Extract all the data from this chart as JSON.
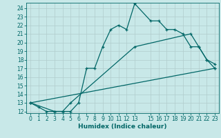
{
  "xlabel": "Humidex (Indice chaleur)",
  "bg_color": "#c8e8e8",
  "grid_color": "#b0cccc",
  "line_color": "#006666",
  "xlim": [
    -0.5,
    23.5
  ],
  "ylim": [
    11.8,
    24.6
  ],
  "yticks": [
    12,
    13,
    14,
    15,
    16,
    17,
    18,
    19,
    20,
    21,
    22,
    23,
    24
  ],
  "xticks": [
    0,
    1,
    2,
    3,
    4,
    5,
    6,
    7,
    8,
    9,
    10,
    11,
    12,
    13,
    15,
    16,
    17,
    18,
    19,
    20,
    21,
    22,
    23
  ],
  "lines": [
    {
      "x": [
        0,
        1,
        2,
        3,
        4,
        5,
        6,
        7,
        8,
        9,
        10,
        11,
        12,
        13,
        15,
        16,
        17,
        18,
        19,
        20,
        21,
        22,
        23
      ],
      "y": [
        13,
        12.5,
        12,
        12,
        12,
        12,
        13,
        17,
        17,
        19.5,
        21.5,
        22,
        21.5,
        24.5,
        22.5,
        22.5,
        21.5,
        21.5,
        21,
        19.5,
        19.5,
        18,
        17
      ]
    },
    {
      "x": [
        0,
        3,
        4,
        5,
        13,
        20,
        21,
        22,
        23
      ],
      "y": [
        13,
        12,
        12,
        13,
        19.5,
        21,
        19.5,
        18,
        17.5
      ]
    },
    {
      "x": [
        0,
        23
      ],
      "y": [
        13,
        17
      ]
    }
  ]
}
